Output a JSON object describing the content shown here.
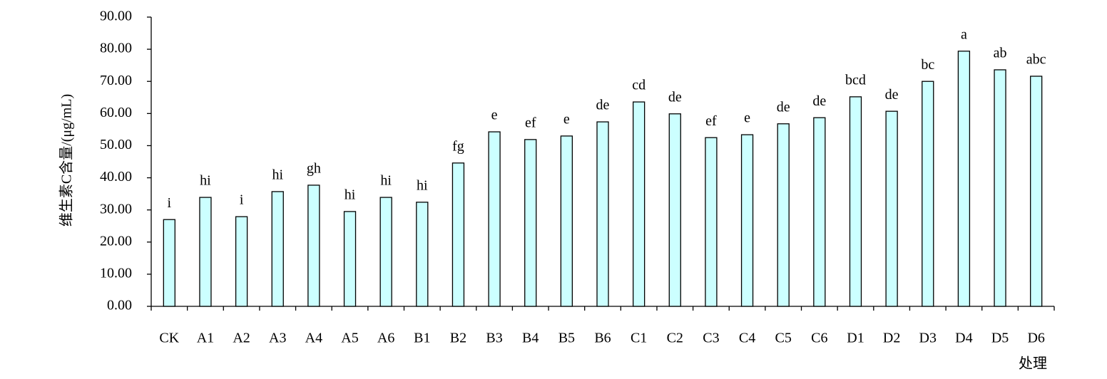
{
  "chart_data": {
    "type": "bar",
    "y_label": "维生素C含量/(μg/mL)",
    "x_label": "处理",
    "categories": [
      "CK",
      "A1",
      "A2",
      "A3",
      "A4",
      "A5",
      "A6",
      "B1",
      "B2",
      "B3",
      "B4",
      "B5",
      "B6",
      "C1",
      "C2",
      "C3",
      "C4",
      "C5",
      "C6",
      "D1",
      "D2",
      "D3",
      "D4",
      "D5",
      "D6"
    ],
    "values": [
      27.0,
      33.9,
      27.9,
      35.7,
      37.7,
      29.5,
      33.9,
      32.4,
      44.6,
      54.3,
      51.9,
      53.0,
      57.4,
      63.6,
      59.9,
      52.5,
      53.4,
      56.8,
      58.7,
      65.2,
      60.7,
      70.0,
      79.4,
      73.6,
      71.6
    ],
    "annotations": [
      "i",
      "hi",
      "i",
      "hi",
      "gh",
      "hi",
      "hi",
      "hi",
      "fg",
      "e",
      "ef",
      "e",
      "de",
      "cd",
      "de",
      "ef",
      "e",
      "de",
      "de",
      "bcd",
      "de",
      "bc",
      "a",
      "ab",
      "abc"
    ],
    "color": "#ccffff",
    "ylim": [
      0,
      90
    ],
    "yticks": [
      {
        "value": 0,
        "label": "0.00"
      },
      {
        "value": 10,
        "label": "10.00"
      },
      {
        "value": 20,
        "label": "20.00"
      },
      {
        "value": 30,
        "label": "30.00"
      },
      {
        "value": 40,
        "label": "40.00"
      },
      {
        "value": 50,
        "label": "50.00"
      },
      {
        "value": 60,
        "label": "60.00"
      },
      {
        "value": 70,
        "label": "70.00"
      },
      {
        "value": 80,
        "label": "80.00"
      },
      {
        "value": 90,
        "label": "90.00"
      }
    ],
    "grid": false
  }
}
